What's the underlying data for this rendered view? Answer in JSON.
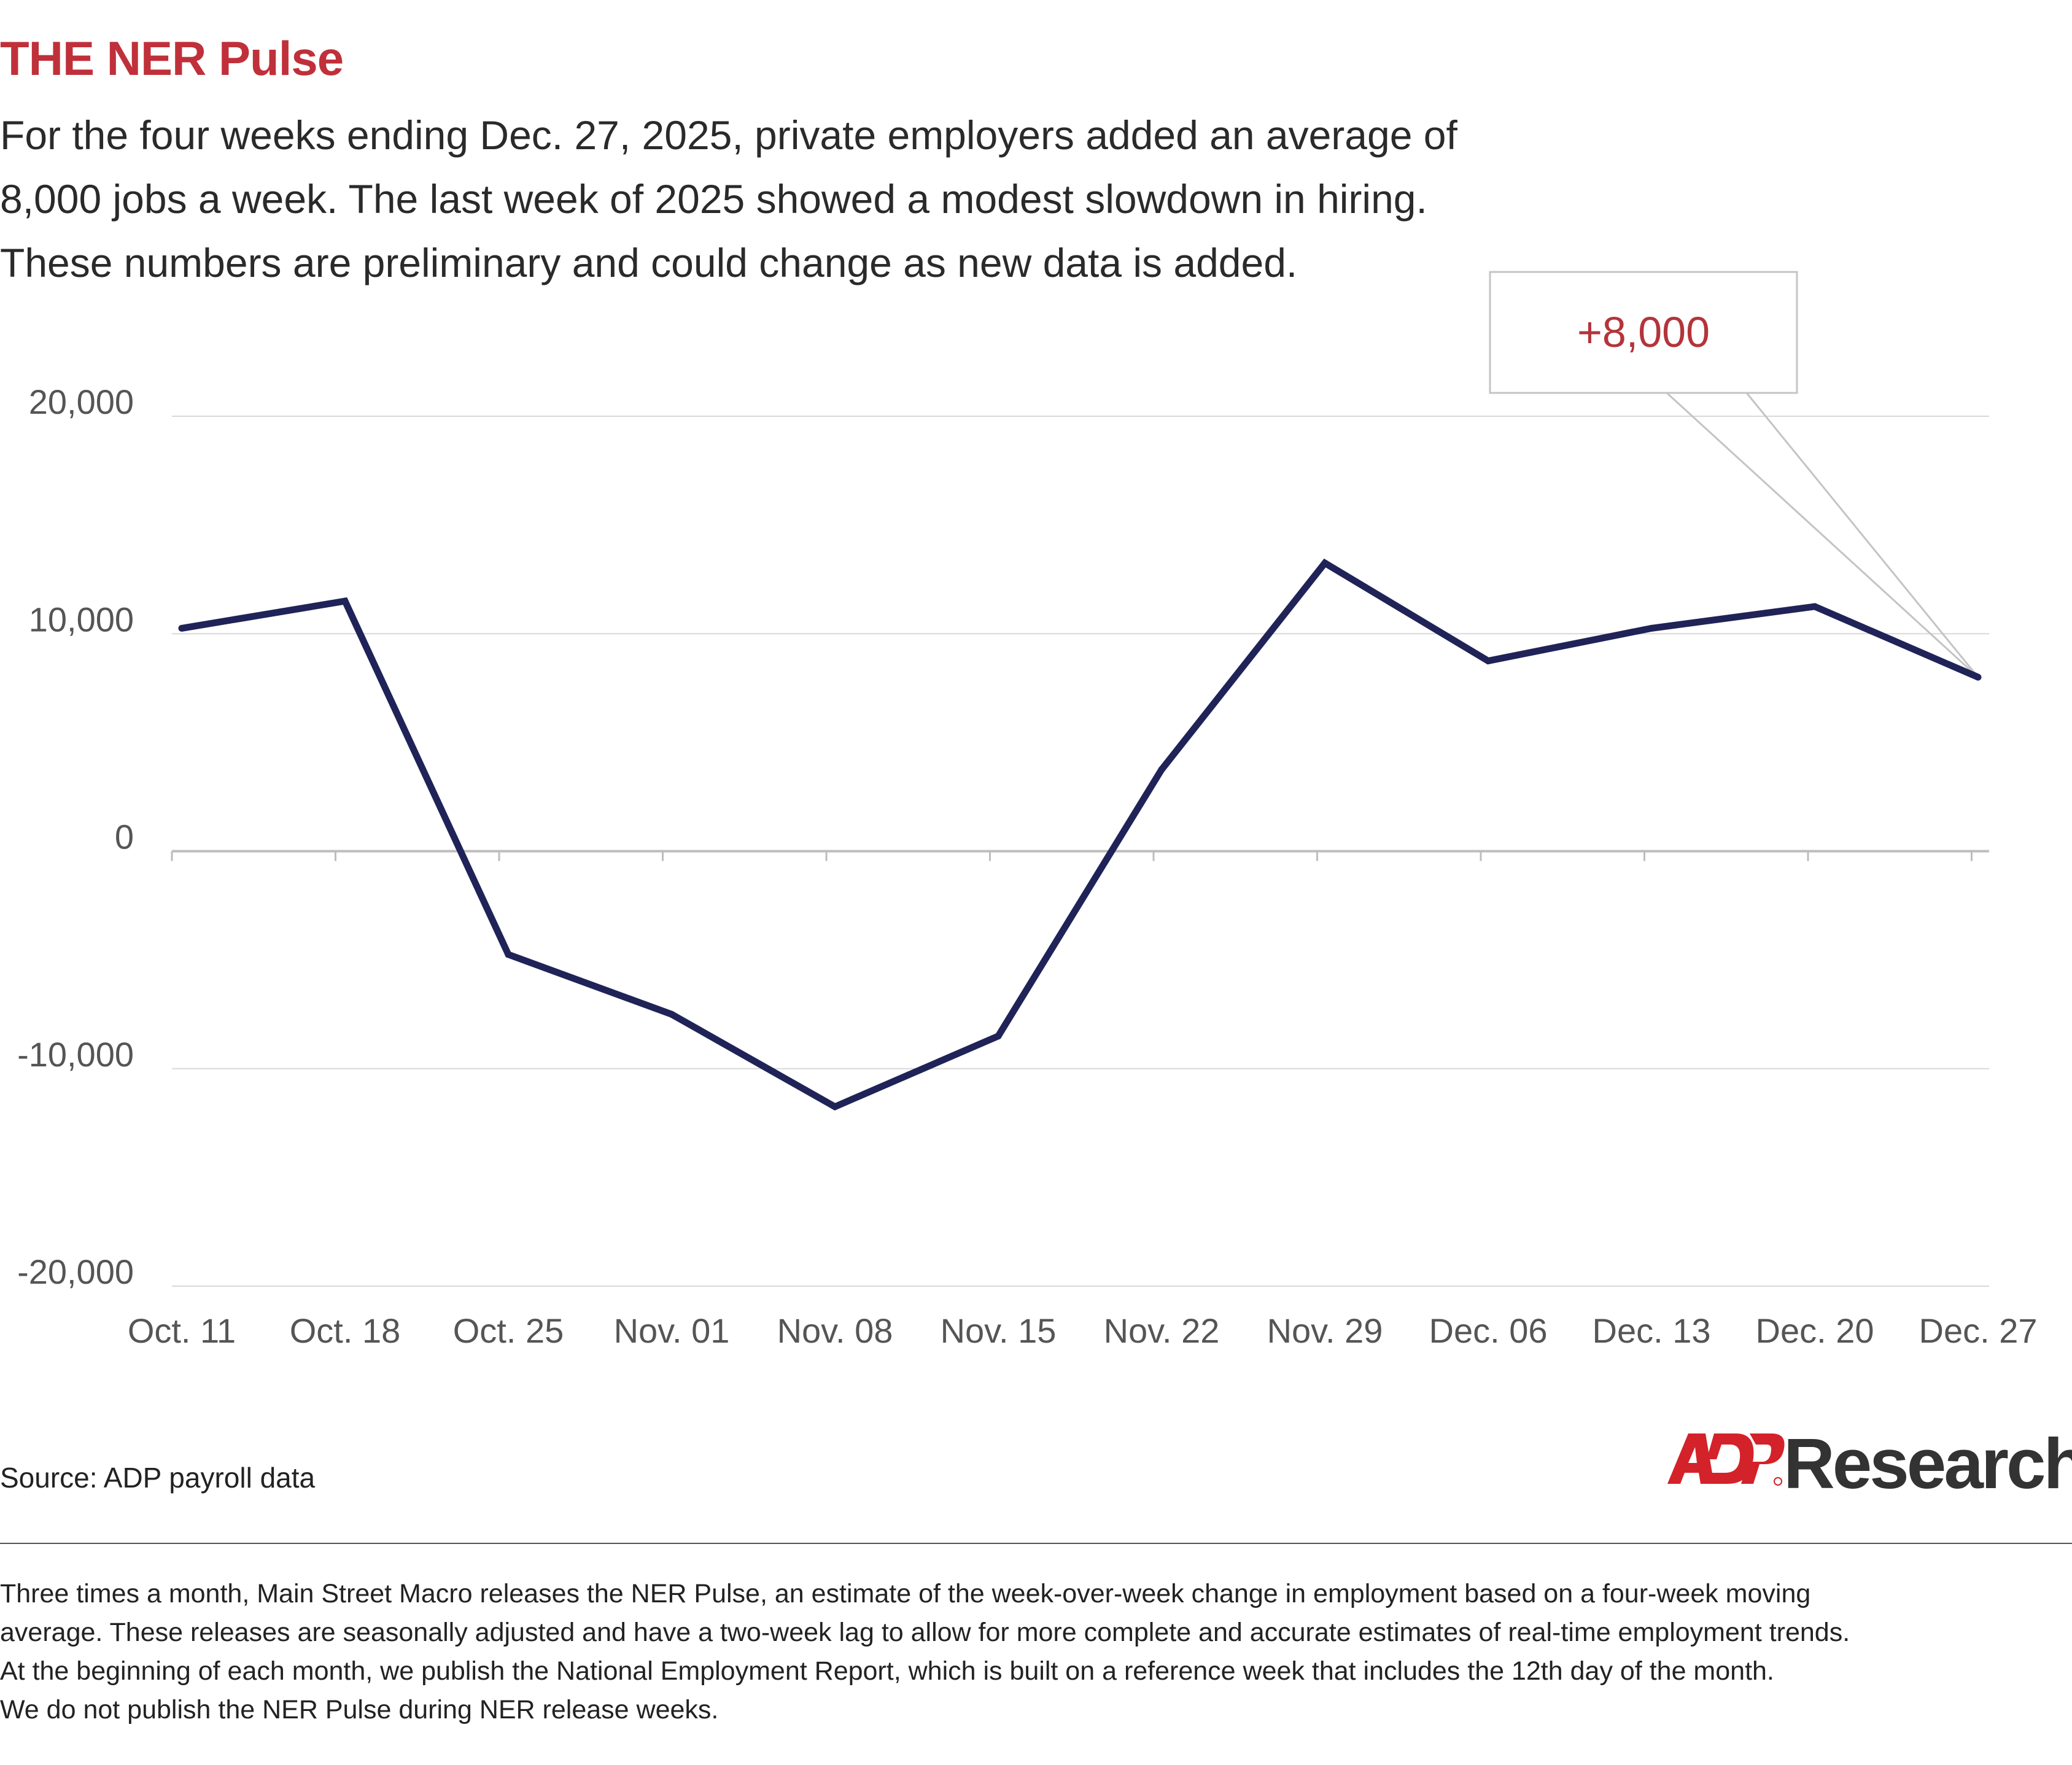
{
  "title": "THE NER Pulse",
  "subtitle_lines": [
    "For the four weeks ending Dec. 27, 2025, private employers added an average of",
    "8,000 jobs a week. The last week of 2025 showed a modest slowdown in hiring.",
    "These numbers are preliminary and could change as new data is added."
  ],
  "chart_data": {
    "type": "line",
    "categories": [
      "Oct. 11",
      "Oct. 18",
      "Oct. 25",
      "Nov. 01",
      "Nov. 08",
      "Nov. 15",
      "Nov. 22",
      "Nov. 29",
      "Dec. 06",
      "Dec. 13",
      "Dec. 20",
      "Dec. 27"
    ],
    "series": [
      {
        "values": [
          10250,
          11500,
          -4750,
          -7500,
          -11750,
          -8500,
          3750,
          13250,
          8750,
          10250,
          11250,
          8000
        ],
        "color": "#1f2357"
      }
    ],
    "y_ticks": [
      20000,
      10000,
      0,
      -10000,
      -20000
    ],
    "y_tick_labels": [
      "20,000",
      "10,000",
      "0",
      "-10,000",
      "-20,000"
    ],
    "ylim": [
      -20000,
      20000
    ],
    "grid": true,
    "legend": "none",
    "annotation": {
      "text": "+8,000",
      "category": "Dec. 27",
      "color": "#b3343a"
    }
  },
  "source": "Source: ADP payroll data",
  "logo": {
    "mark": "ADP",
    "word": "Research",
    "mark_color": "#d3222a"
  },
  "footnote_lines": [
    "Three times a month, Main Street Macro releases the NER Pulse, an estimate of the week-over-week change in employment based on a four-week moving",
    "average. These releases are seasonally adjusted and have a two-week lag to allow for more complete and accurate estimates of real-time employment trends.",
    "At the beginning of each month, we publish the National Employment Report, which is built on a reference week that includes the 12th day of the month.",
    "We do not publish the NER Pulse during NER release weeks."
  ]
}
